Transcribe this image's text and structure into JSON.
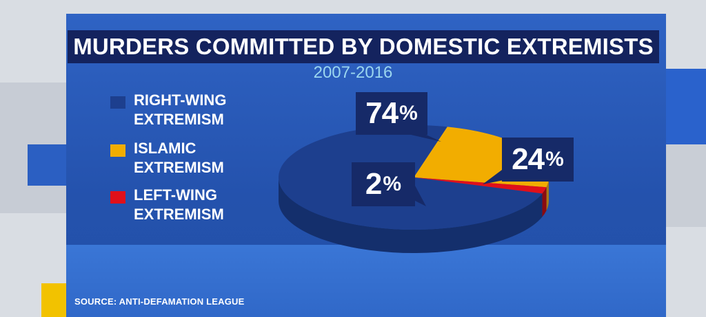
{
  "title": "MURDERS COMMITTED BY DOMESTIC EXTREMISTS",
  "subtitle": "2007-2016",
  "source": "SOURCE: ANTI-DEFAMATION LEAGUE",
  "colors": {
    "right_wing": "#1d3f8e",
    "islamic": "#f2ad00",
    "left_wing": "#e0101a"
  },
  "chart_data": {
    "type": "pie",
    "title": "MURDERS COMMITTED BY DOMESTIC EXTREMISTS",
    "subtitle": "2007-2016",
    "legend_position": "left",
    "slices": [
      {
        "label": "RIGHT-WING EXTREMISM",
        "value": 74,
        "display": "74"
      },
      {
        "label": "ISLAMIC EXTREMISM",
        "value": 24,
        "display": "24"
      },
      {
        "label": "LEFT-WING EXTREMISM",
        "value": 2,
        "display": "2"
      }
    ],
    "percent_sign": "%"
  }
}
